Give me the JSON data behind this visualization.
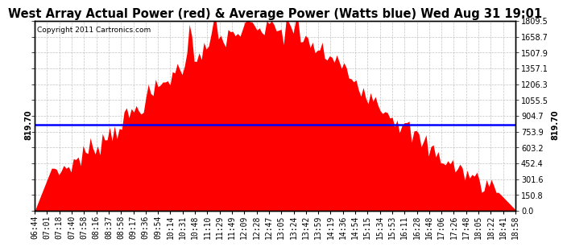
{
  "title": "West Array Actual Power (red) & Average Power (Watts blue) Wed Aug 31 19:01",
  "copyright": "Copyright 2011 Cartronics.com",
  "average_power": 819.7,
  "ymax": 1809.5,
  "yticks": [
    0.0,
    150.8,
    301.6,
    452.4,
    603.2,
    753.9,
    904.7,
    1055.5,
    1206.3,
    1357.1,
    1507.9,
    1658.7,
    1809.5
  ],
  "bar_color": "#FF0000",
  "avg_line_color": "#0000FF",
  "background_color": "#FFFFFF",
  "grid_color": "#AAAAAA",
  "avg_label": "819.70",
  "title_fontsize": 10.5,
  "tick_fontsize": 7,
  "copyright_fontsize": 6.5,
  "avg_label_fontsize": 7,
  "num_points": 200,
  "peak": 0.47,
  "sigma": 0.24,
  "noise_scale": 55,
  "time_labels": [
    "06:44",
    "07:01",
    "07:18",
    "07:40",
    "07:58",
    "08:16",
    "08:37",
    "08:58",
    "09:17",
    "09:36",
    "09:54",
    "10:14",
    "10:31",
    "10:48",
    "11:10",
    "11:29",
    "11:49",
    "12:09",
    "12:28",
    "12:47",
    "13:05",
    "13:24",
    "13:42",
    "13:59",
    "14:19",
    "14:36",
    "14:54",
    "15:15",
    "15:34",
    "15:53",
    "16:11",
    "16:28",
    "16:48",
    "17:06",
    "17:26",
    "17:48",
    "18:05",
    "18:22",
    "18:41",
    "18:58"
  ]
}
